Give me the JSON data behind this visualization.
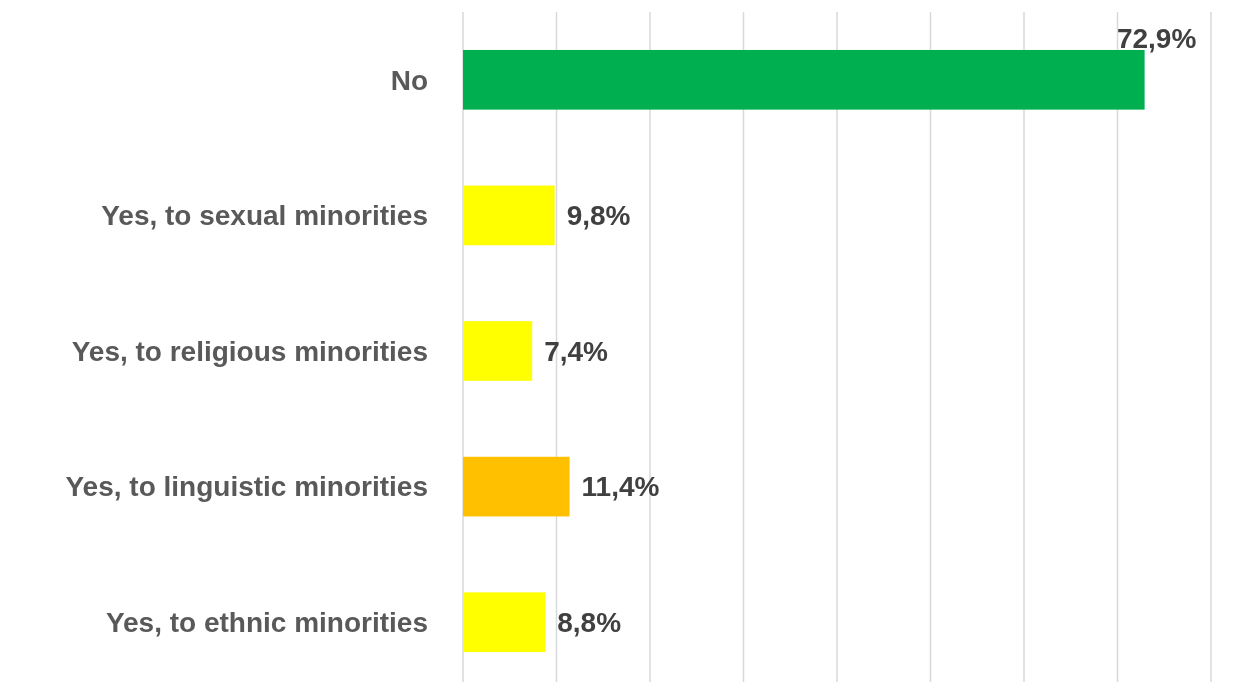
{
  "chart_data": {
    "type": "bar",
    "orientation": "horizontal",
    "categories": [
      "No",
      "Yes, to sexual minorities",
      "Yes, to religious minorities",
      "Yes, to linguistic minorities",
      "Yes, to ethnic minorities"
    ],
    "values": [
      72.9,
      9.8,
      7.4,
      11.4,
      8.8
    ],
    "colors": [
      "#00b050",
      "#ffff00",
      "#ffff00",
      "#ffc000",
      "#ffff00"
    ],
    "value_labels": [
      "72,9%",
      "9,8%",
      "7,4%",
      "11,4%",
      "8,8%"
    ],
    "xlim": [
      0,
      80
    ],
    "xticks": [
      {
        "value": 0,
        "label": null
      },
      {
        "value": 10,
        "label": null
      },
      {
        "value": 20,
        "label": null
      },
      {
        "value": 30,
        "label": null
      },
      {
        "value": 40,
        "label": null
      },
      {
        "value": 50,
        "label": null
      },
      {
        "value": 60,
        "label": null
      },
      {
        "value": 70,
        "label": null
      },
      {
        "value": 80,
        "label": null
      }
    ],
    "grid": "x",
    "tick_labels": "y"
  }
}
